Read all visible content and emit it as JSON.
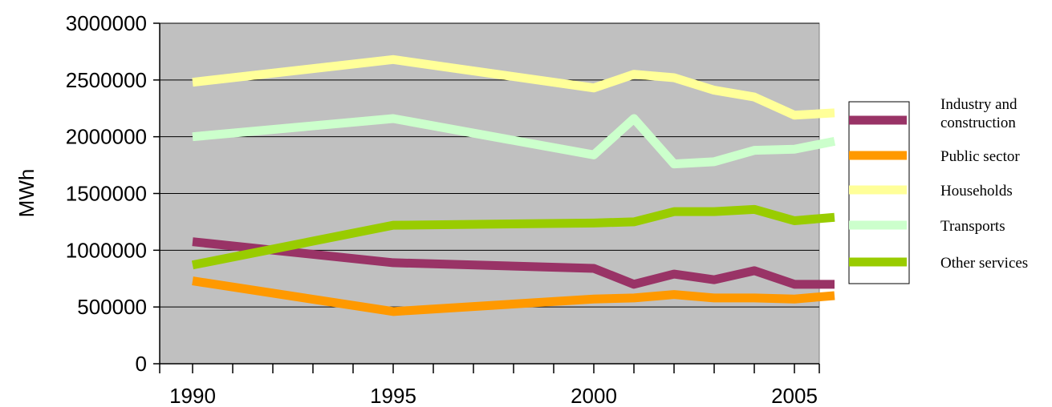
{
  "chart_data": {
    "type": "line",
    "title": "",
    "xlabel": "",
    "ylabel": "MWh",
    "x": [
      1990,
      1995,
      2000,
      2001,
      2002,
      2003,
      2004,
      2005,
      2006
    ],
    "xtick_labels": [
      "1990",
      "1995",
      "2000",
      "2005"
    ],
    "ytick_labels": [
      "0",
      "500000",
      "1000000",
      "1500000",
      "2000000",
      "2500000",
      "3000000"
    ],
    "ylim": [
      0,
      3000000
    ],
    "grid": "horizontal",
    "plot_background": "#c0c0c0",
    "legend_position": "right",
    "series": [
      {
        "name": "Industry and construction",
        "name_lines": [
          "Industry and",
          "construction"
        ],
        "color": "#993366",
        "values": [
          1075000,
          890000,
          840000,
          700000,
          790000,
          740000,
          820000,
          700000,
          700000
        ]
      },
      {
        "name": "Public sector",
        "name_lines": [
          "Public sector"
        ],
        "color": "#ff9900",
        "values": [
          730000,
          460000,
          570000,
          580000,
          610000,
          580000,
          580000,
          570000,
          600000
        ]
      },
      {
        "name": "Households",
        "name_lines": [
          "Households"
        ],
        "color": "#ffff99",
        "values": [
          2480000,
          2680000,
          2430000,
          2550000,
          2520000,
          2410000,
          2350000,
          2190000,
          2210000
        ]
      },
      {
        "name": "Transports",
        "name_lines": [
          "Transports"
        ],
        "color": "#ccffcc",
        "values": [
          2000000,
          2160000,
          1840000,
          2160000,
          1760000,
          1780000,
          1880000,
          1890000,
          1960000
        ]
      },
      {
        "name": "Other services",
        "name_lines": [
          "Other services"
        ],
        "color": "#99cc00",
        "values": [
          870000,
          1220000,
          1240000,
          1250000,
          1340000,
          1340000,
          1360000,
          1260000,
          1290000
        ]
      }
    ]
  }
}
